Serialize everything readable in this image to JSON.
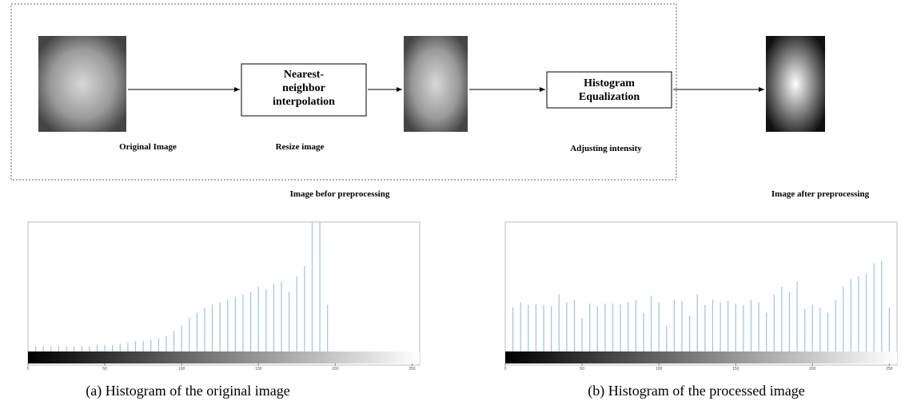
{
  "diagram": {
    "nodes": [
      "Nearest-neighbor interpolation",
      "Histogram Equalization"
    ],
    "labels": [
      "Original Image",
      "Resize image",
      "Adjusting intensity",
      "Image befor preprocessing",
      "Image after preprocessing"
    ]
  },
  "chart_data": [
    {
      "type": "bar",
      "title": "(a) Histogram of the original image",
      "color": "#9cc3e0",
      "x": [
        5,
        10,
        15,
        20,
        25,
        30,
        35,
        40,
        45,
        50,
        55,
        60,
        65,
        70,
        75,
        80,
        85,
        90,
        95,
        100,
        105,
        110,
        115,
        120,
        125,
        130,
        135,
        140,
        145,
        150,
        155,
        160,
        165,
        170,
        175,
        180,
        185,
        190,
        195
      ],
      "values": [
        4,
        4,
        4,
        4,
        4,
        4,
        4,
        4,
        5,
        5,
        5,
        6,
        7,
        8,
        8,
        9,
        10,
        12,
        16,
        20,
        26,
        30,
        34,
        36,
        38,
        40,
        42,
        44,
        46,
        50,
        48,
        52,
        54,
        46,
        58,
        66,
        100,
        100,
        36
      ],
      "xlim": [
        0,
        255
      ],
      "xticks": [
        0,
        50,
        100,
        150,
        200,
        250
      ],
      "ylim": [
        0,
        100
      ]
    },
    {
      "type": "bar",
      "title": "(b) Histogram of the processed image",
      "color": "#9cc3e0",
      "x": [
        5,
        10,
        15,
        20,
        25,
        30,
        35,
        40,
        45,
        50,
        55,
        60,
        65,
        70,
        75,
        80,
        85,
        90,
        95,
        100,
        105,
        110,
        115,
        120,
        125,
        130,
        135,
        140,
        145,
        150,
        155,
        160,
        165,
        170,
        175,
        180,
        185,
        190,
        195,
        200,
        205,
        210,
        215,
        220,
        225,
        230,
        235,
        240,
        245,
        250
      ],
      "values": [
        34,
        38,
        36,
        37,
        36,
        35,
        44,
        38,
        40,
        26,
        37,
        35,
        37,
        37,
        36,
        38,
        40,
        30,
        43,
        38,
        20,
        40,
        39,
        28,
        44,
        36,
        40,
        38,
        39,
        37,
        36,
        40,
        38,
        30,
        44,
        50,
        46,
        54,
        33,
        36,
        34,
        30,
        40,
        50,
        56,
        58,
        60,
        68,
        70,
        34
      ],
      "xlim": [
        0,
        255
      ],
      "xticks": [
        0,
        50,
        100,
        150,
        200,
        250
      ],
      "ylim": [
        0,
        100
      ]
    }
  ]
}
